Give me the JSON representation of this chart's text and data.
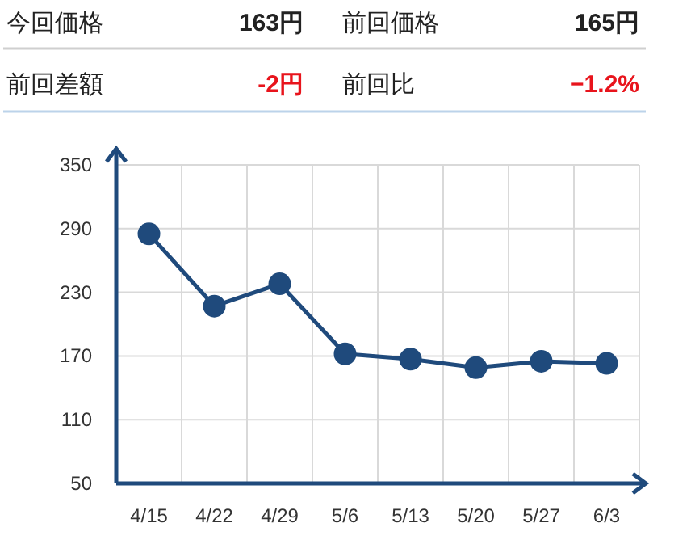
{
  "chart_data": [
    {
      "type": "other",
      "annotations": [
        "今回価格",
        "163円",
        "前回価格",
        "165円",
        "前回差額",
        "-2円",
        "前回比",
        "−1.2%"
      ]
    },
    {
      "type": "line",
      "categories": [
        "4/15",
        "4/22",
        "4/29",
        "5/6",
        "5/13",
        "5/20",
        "5/27",
        "6/3"
      ],
      "series": [
        {
          "color": "#1f4a7c",
          "values": [
            285,
            217,
            238,
            172,
            167,
            159,
            165,
            163
          ]
        }
      ],
      "ylim": [
        50,
        350
      ],
      "yticks": [
        50,
        110,
        170,
        230,
        290,
        350
      ],
      "grid": true,
      "marker": "circle",
      "line_style": "solid"
    }
  ]
}
